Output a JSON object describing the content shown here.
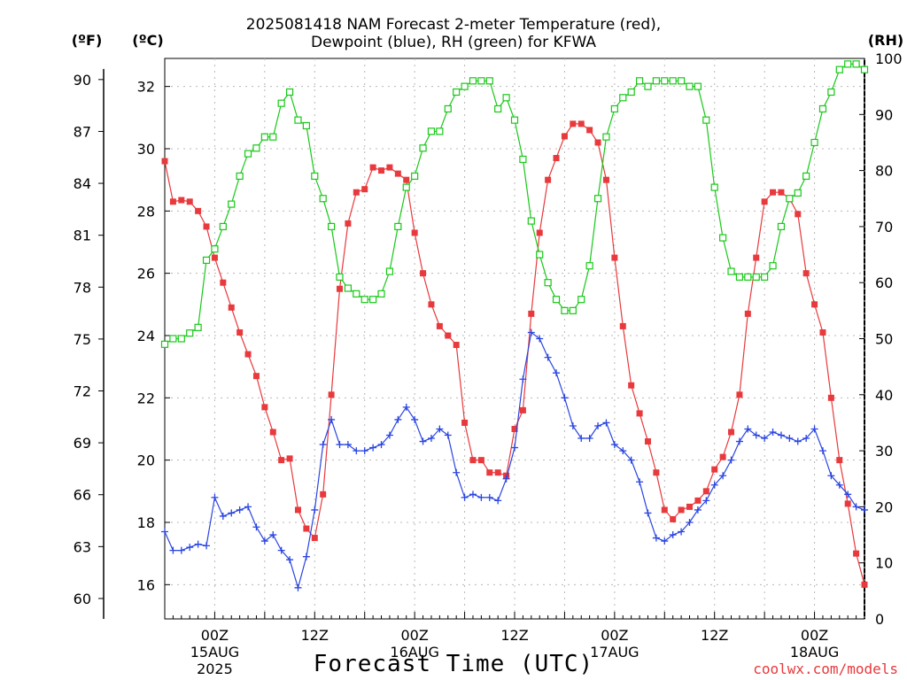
{
  "title_line1": "2025081418 NAM Forecast 2-meter Temperature (red),",
  "title_line2": "Dewpoint (blue), RH (green) for KFWA",
  "credit": "coolwx.com/models",
  "chart_data": {
    "type": "line",
    "title": "2025081418 NAM Forecast 2-meter Temperature (red), Dewpoint (blue), RH (green) for KFWA",
    "xlabel": "Forecast Time (UTC)",
    "ylabel_left_f": "(ºF)",
    "ylabel_left_c": "(ºC)",
    "ylabel_right": "(RH)",
    "x_hours_note": "hours after 2025-08-14 18Z, 1-hour steps, 0..84",
    "x_ticks": [
      {
        "hour": 6,
        "label": "00Z",
        "sub1": "15AUG",
        "sub2": "2025"
      },
      {
        "hour": 18,
        "label": "12Z",
        "sub1": "",
        "sub2": ""
      },
      {
        "hour": 30,
        "label": "00Z",
        "sub1": "16AUG",
        "sub2": ""
      },
      {
        "hour": 42,
        "label": "12Z",
        "sub1": "",
        "sub2": ""
      },
      {
        "hour": 54,
        "label": "00Z",
        "sub1": "17AUG",
        "sub2": ""
      },
      {
        "hour": 66,
        "label": "12Z",
        "sub1": "",
        "sub2": ""
      },
      {
        "hour": 78,
        "label": "00Z",
        "sub1": "18AUG",
        "sub2": ""
      }
    ],
    "x_range": [
      0,
      84
    ],
    "ylim_c": [
      14.9,
      32.9
    ],
    "ylim_rh": [
      0,
      100
    ],
    "yticks_c": [
      16,
      18,
      20,
      22,
      24,
      26,
      28,
      30,
      32
    ],
    "yticks_f": [
      60,
      63,
      66,
      69,
      72,
      75,
      78,
      81,
      84,
      87,
      90
    ],
    "yticks_rh": [
      0,
      10,
      20,
      30,
      40,
      50,
      60,
      70,
      80,
      90,
      100
    ],
    "grid": true,
    "series": [
      {
        "name": "Temperature",
        "unit": "C",
        "color": "#e8393c",
        "marker": "filled-square",
        "values": [
          29.6,
          28.3,
          28.35,
          28.3,
          28.0,
          27.5,
          26.5,
          25.7,
          24.9,
          24.1,
          23.4,
          22.7,
          21.7,
          20.9,
          20.0,
          20.05,
          18.4,
          17.8,
          17.5,
          18.9,
          22.1,
          25.5,
          27.6,
          28.6,
          28.7,
          29.4,
          29.3,
          29.4,
          29.2,
          29.0,
          27.3,
          26.0,
          25.0,
          24.3,
          24.0,
          23.7,
          21.2,
          20.0,
          20.0,
          19.6,
          19.6,
          19.5,
          21.0,
          21.6,
          24.7,
          27.3,
          29.0,
          29.7,
          30.4,
          30.8,
          30.8,
          30.6,
          30.2,
          29.0,
          26.5,
          24.3,
          22.4,
          21.5,
          20.6,
          19.6,
          18.4,
          18.1,
          18.4,
          18.5,
          18.7,
          19.0,
          19.7,
          20.1,
          20.9,
          22.1,
          24.7,
          26.5,
          28.3,
          28.6,
          28.6,
          28.4,
          27.9,
          26.0,
          25.0,
          24.1,
          22.0,
          20.0,
          18.6,
          17.0,
          16.0
        ]
      },
      {
        "name": "Dewpoint",
        "unit": "C",
        "color": "#2a45e0",
        "marker": "plus",
        "values": [
          17.7,
          17.1,
          17.1,
          17.2,
          17.3,
          17.25,
          18.8,
          18.2,
          18.3,
          18.4,
          18.5,
          17.85,
          17.4,
          17.6,
          17.1,
          16.8,
          15.9,
          16.9,
          18.4,
          20.5,
          21.3,
          20.5,
          20.5,
          20.3,
          20.3,
          20.4,
          20.5,
          20.8,
          21.3,
          21.7,
          21.3,
          20.6,
          20.7,
          21.0,
          20.8,
          19.6,
          18.8,
          18.9,
          18.8,
          18.8,
          18.7,
          19.4,
          20.4,
          22.6,
          24.1,
          23.9,
          23.3,
          22.8,
          22.0,
          21.1,
          20.7,
          20.7,
          21.1,
          21.2,
          20.5,
          20.3,
          20.0,
          19.3,
          18.3,
          17.5,
          17.4,
          17.6,
          17.7,
          18.0,
          18.4,
          18.7,
          19.2,
          19.5,
          20.0,
          20.6,
          21.0,
          20.8,
          20.7,
          20.9,
          20.8,
          20.7,
          20.6,
          20.7,
          21.0,
          20.3,
          19.5,
          19.2,
          18.9,
          18.5,
          18.4
        ]
      },
      {
        "name": "RH",
        "unit": "%",
        "color": "#17c917",
        "marker": "open-square",
        "values": [
          49,
          50,
          50,
          51,
          52,
          64,
          66,
          70,
          74,
          79,
          83,
          84,
          86,
          86,
          92,
          94,
          89,
          88,
          79,
          75,
          70,
          61,
          59,
          58,
          57,
          57,
          58,
          62,
          70,
          77,
          79,
          84,
          87,
          87,
          91,
          94,
          95,
          96,
          96,
          96,
          91,
          93,
          89,
          82,
          71,
          65,
          60,
          57,
          55,
          55,
          57,
          63,
          75,
          86,
          91,
          93,
          94,
          96,
          95,
          96,
          96,
          96,
          96,
          95,
          95,
          89,
          77,
          68,
          62,
          61,
          61,
          61,
          61,
          63,
          70,
          75,
          76,
          79,
          85,
          91,
          94,
          98,
          99,
          99,
          98
        ]
      }
    ]
  }
}
